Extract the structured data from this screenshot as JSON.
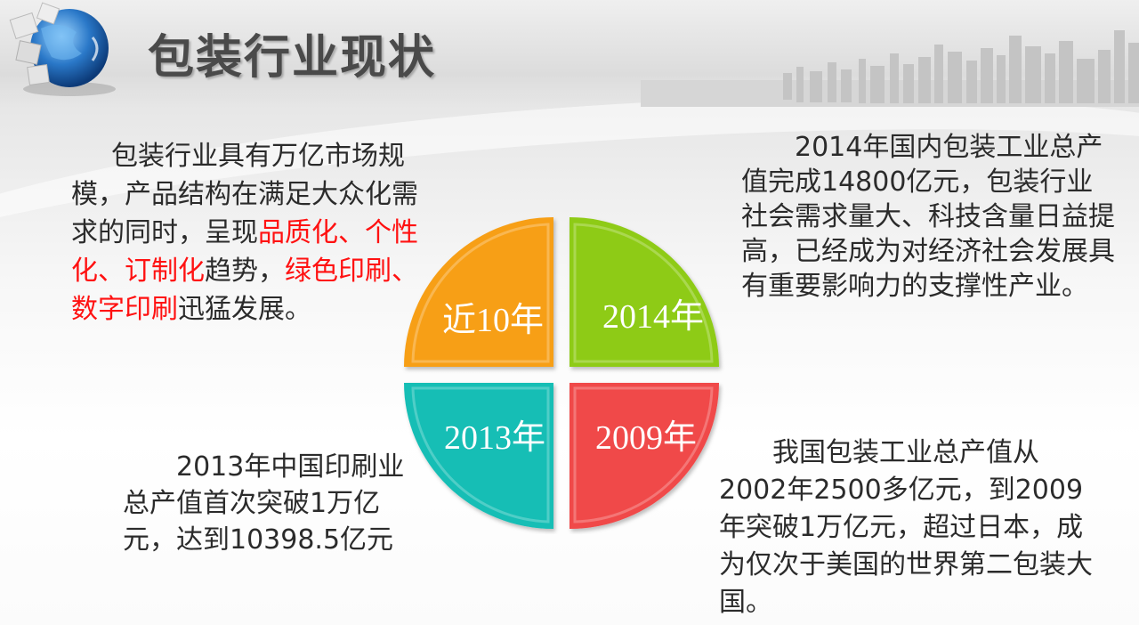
{
  "title": "包装行业现状",
  "quadrants": {
    "top_left": {
      "label": "近10年",
      "color": "#f79f17"
    },
    "top_right": {
      "label": "2014年",
      "color": "#8ecb14"
    },
    "bottom_left": {
      "label": "2013年",
      "color": "#16beb5"
    },
    "bottom_right": {
      "label": "2009年",
      "color": "#f04848"
    }
  },
  "text_top_left": {
    "part1": "包装行业具有万亿市场规模，产品结构在满足大众化需求的同时，呈现",
    "highlight1": "品质化、个性化、订制化",
    "part2": "趋势，",
    "highlight2": "绿色印刷、数字印刷",
    "part3": "迅猛发展。"
  },
  "text_top_right": "2014年国内包装工业总产值完成14800亿元，包装行业社会需求量大、科技含量日益提高，已经成为对经济社会发展具有重要影响力的支撑性产业。",
  "text_bottom_left": "2013年中国印刷业总产值首次突破1万亿元，达到10398.5亿元",
  "text_bottom_right": "我国包装工业总产值从2002年2500多亿元，到2009年突破1万亿元，超过日本，成为仅次于美国的世界第二包装大国。",
  "colors": {
    "highlight": "#ff1111",
    "title": "#4a4a4a",
    "body_text": "#2b2b2b"
  }
}
